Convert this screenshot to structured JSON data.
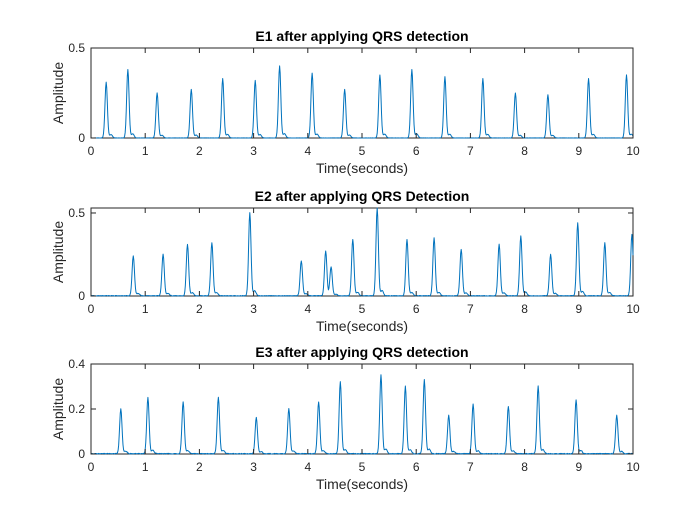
{
  "chart_data": [
    {
      "type": "line",
      "title": "E1 after applying QRS detection",
      "xlabel": "Time(seconds)",
      "ylabel": "Amplitude",
      "xlim": [
        0,
        10
      ],
      "ylim": [
        0,
        0.5
      ],
      "xticks": [
        0,
        1,
        2,
        3,
        4,
        5,
        6,
        7,
        8,
        9,
        10
      ],
      "yticks": [
        0,
        0.5
      ],
      "grid": false,
      "series": [
        {
          "color": "#0072BD",
          "peaks": [
            {
              "x": 0.28,
              "y": 0.31
            },
            {
              "x": 0.68,
              "y": 0.38
            },
            {
              "x": 1.22,
              "y": 0.25
            },
            {
              "x": 1.85,
              "y": 0.27
            },
            {
              "x": 2.43,
              "y": 0.33
            },
            {
              "x": 3.03,
              "y": 0.32
            },
            {
              "x": 3.48,
              "y": 0.4
            },
            {
              "x": 4.08,
              "y": 0.36
            },
            {
              "x": 4.68,
              "y": 0.27
            },
            {
              "x": 5.33,
              "y": 0.35
            },
            {
              "x": 5.92,
              "y": 0.38
            },
            {
              "x": 6.53,
              "y": 0.34
            },
            {
              "x": 7.23,
              "y": 0.33
            },
            {
              "x": 7.83,
              "y": 0.25
            },
            {
              "x": 8.43,
              "y": 0.24
            },
            {
              "x": 9.18,
              "y": 0.33
            },
            {
              "x": 9.88,
              "y": 0.35
            }
          ]
        }
      ]
    },
    {
      "type": "line",
      "title": "E2 after applying QRS Detection",
      "xlabel": "Time(seconds)",
      "ylabel": "Amplitude",
      "xlim": [
        0,
        10
      ],
      "ylim": [
        0,
        0.53
      ],
      "xticks": [
        0,
        1,
        2,
        3,
        4,
        5,
        6,
        7,
        8,
        9,
        10
      ],
      "yticks": [
        0,
        0.5
      ],
      "grid": false,
      "series": [
        {
          "color": "#0072BD",
          "peaks": [
            {
              "x": 0.78,
              "y": 0.24
            },
            {
              "x": 1.33,
              "y": 0.25
            },
            {
              "x": 1.78,
              "y": 0.31
            },
            {
              "x": 2.23,
              "y": 0.32
            },
            {
              "x": 2.93,
              "y": 0.5
            },
            {
              "x": 3.88,
              "y": 0.21
            },
            {
              "x": 4.33,
              "y": 0.27
            },
            {
              "x": 4.43,
              "y": 0.16
            },
            {
              "x": 4.83,
              "y": 0.34
            },
            {
              "x": 5.28,
              "y": 0.53
            },
            {
              "x": 5.83,
              "y": 0.34
            },
            {
              "x": 6.33,
              "y": 0.35
            },
            {
              "x": 6.83,
              "y": 0.28
            },
            {
              "x": 7.53,
              "y": 0.31
            },
            {
              "x": 7.93,
              "y": 0.36
            },
            {
              "x": 8.48,
              "y": 0.25
            },
            {
              "x": 8.98,
              "y": 0.44
            },
            {
              "x": 9.48,
              "y": 0.32
            },
            {
              "x": 9.98,
              "y": 0.37
            }
          ]
        }
      ]
    },
    {
      "type": "line",
      "title": "E3 after applying QRS detection",
      "xlabel": "Time(seconds)",
      "ylabel": "Amplitude",
      "xlim": [
        0,
        10
      ],
      "ylim": [
        0,
        0.4
      ],
      "xticks": [
        0,
        1,
        2,
        3,
        4,
        5,
        6,
        7,
        8,
        9,
        10
      ],
      "yticks": [
        0,
        0.2,
        0.4
      ],
      "grid": false,
      "series": [
        {
          "color": "#0072BD",
          "peaks": [
            {
              "x": 0.55,
              "y": 0.2
            },
            {
              "x": 1.05,
              "y": 0.25
            },
            {
              "x": 1.7,
              "y": 0.23
            },
            {
              "x": 2.35,
              "y": 0.25
            },
            {
              "x": 3.05,
              "y": 0.16
            },
            {
              "x": 3.65,
              "y": 0.2
            },
            {
              "x": 4.2,
              "y": 0.23
            },
            {
              "x": 4.6,
              "y": 0.32
            },
            {
              "x": 5.35,
              "y": 0.35
            },
            {
              "x": 5.8,
              "y": 0.3
            },
            {
              "x": 6.15,
              "y": 0.33
            },
            {
              "x": 6.6,
              "y": 0.17
            },
            {
              "x": 7.05,
              "y": 0.22
            },
            {
              "x": 7.7,
              "y": 0.21
            },
            {
              "x": 8.25,
              "y": 0.3
            },
            {
              "x": 8.95,
              "y": 0.24
            },
            {
              "x": 9.7,
              "y": 0.17
            }
          ]
        }
      ]
    }
  ]
}
